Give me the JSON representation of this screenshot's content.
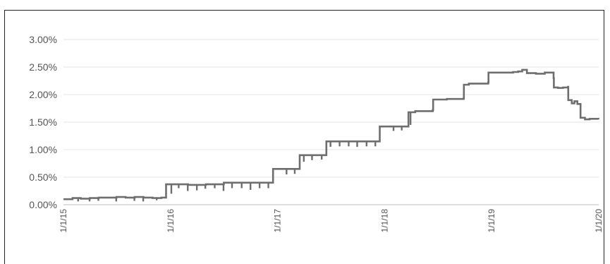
{
  "chart_data": {
    "type": "line",
    "title": "",
    "xlabel": "",
    "ylabel": "",
    "y_tick_labels": [
      "0.00%",
      "0.50%",
      "1.00%",
      "1.50%",
      "2.00%",
      "2.50%",
      "3.00%"
    ],
    "x_tick_labels": [
      "1/1/15",
      "1/1/16",
      "1/1/17",
      "1/1/18",
      "1/1/19",
      "1/1/20"
    ],
    "ylim": [
      0,
      3.0
    ],
    "xlim": [
      "2015-01-01",
      "2020-01-01"
    ],
    "grid": true,
    "line_color": "#6e6e6e",
    "series": [
      {
        "values": [
          {
            "x": "2015-01-01",
            "y": 0.1
          },
          {
            "x": "2015-02-01",
            "y": 0.12
          },
          {
            "x": "2015-03-01",
            "y": 0.11
          },
          {
            "x": "2015-04-01",
            "y": 0.12
          },
          {
            "x": "2015-05-01",
            "y": 0.13
          },
          {
            "x": "2015-06-01",
            "y": 0.13
          },
          {
            "x": "2015-07-01",
            "y": 0.14
          },
          {
            "x": "2015-08-01",
            "y": 0.13
          },
          {
            "x": "2015-09-01",
            "y": 0.14
          },
          {
            "x": "2015-10-01",
            "y": 0.13
          },
          {
            "x": "2015-11-01",
            "y": 0.12
          },
          {
            "x": "2015-12-01",
            "y": 0.13
          },
          {
            "x": "2015-12-17",
            "y": 0.37
          },
          {
            "x": "2016-01-15",
            "y": 0.37
          },
          {
            "x": "2016-03-01",
            "y": 0.36
          },
          {
            "x": "2016-05-01",
            "y": 0.37
          },
          {
            "x": "2016-07-01",
            "y": 0.4
          },
          {
            "x": "2016-09-01",
            "y": 0.4
          },
          {
            "x": "2016-11-01",
            "y": 0.4
          },
          {
            "x": "2016-12-15",
            "y": 0.4
          },
          {
            "x": "2016-12-16",
            "y": 0.65
          },
          {
            "x": "2017-02-01",
            "y": 0.65
          },
          {
            "x": "2017-03-16",
            "y": 0.65
          },
          {
            "x": "2017-03-17",
            "y": 0.9
          },
          {
            "x": "2017-05-01",
            "y": 0.9
          },
          {
            "x": "2017-06-15",
            "y": 0.9
          },
          {
            "x": "2017-06-16",
            "y": 1.15
          },
          {
            "x": "2017-09-01",
            "y": 1.15
          },
          {
            "x": "2017-12-14",
            "y": 1.15
          },
          {
            "x": "2017-12-15",
            "y": 1.42
          },
          {
            "x": "2018-02-01",
            "y": 1.42
          },
          {
            "x": "2018-03-22",
            "y": 1.42
          },
          {
            "x": "2018-03-23",
            "y": 1.68
          },
          {
            "x": "2018-04-15",
            "y": 1.7
          },
          {
            "x": "2018-06-14",
            "y": 1.72
          },
          {
            "x": "2018-06-15",
            "y": 1.91
          },
          {
            "x": "2018-08-01",
            "y": 1.92
          },
          {
            "x": "2018-09-27",
            "y": 1.93
          },
          {
            "x": "2018-09-28",
            "y": 2.18
          },
          {
            "x": "2018-10-15",
            "y": 2.2
          },
          {
            "x": "2018-12-20",
            "y": 2.22
          },
          {
            "x": "2018-12-21",
            "y": 2.4
          },
          {
            "x": "2019-02-01",
            "y": 2.4
          },
          {
            "x": "2019-03-15",
            "y": 2.41
          },
          {
            "x": "2019-04-01",
            "y": 2.42
          },
          {
            "x": "2019-04-15",
            "y": 2.45
          },
          {
            "x": "2019-05-01",
            "y": 2.39
          },
          {
            "x": "2019-06-01",
            "y": 2.38
          },
          {
            "x": "2019-07-01",
            "y": 2.4
          },
          {
            "x": "2019-07-29",
            "y": 2.4
          },
          {
            "x": "2019-07-31",
            "y": 2.3
          },
          {
            "x": "2019-08-01",
            "y": 2.13
          },
          {
            "x": "2019-08-15",
            "y": 2.12
          },
          {
            "x": "2019-09-01",
            "y": 2.13
          },
          {
            "x": "2019-09-18",
            "y": 2.14
          },
          {
            "x": "2019-09-19",
            "y": 1.9
          },
          {
            "x": "2019-10-01",
            "y": 1.84
          },
          {
            "x": "2019-10-10",
            "y": 1.88
          },
          {
            "x": "2019-10-20",
            "y": 1.83
          },
          {
            "x": "2019-10-30",
            "y": 1.83
          },
          {
            "x": "2019-10-31",
            "y": 1.58
          },
          {
            "x": "2019-11-15",
            "y": 1.55
          },
          {
            "x": "2019-12-01",
            "y": 1.56
          },
          {
            "x": "2019-12-31",
            "y": 1.55
          }
        ],
        "dips": [
          {
            "x": "2015-02-20",
            "y": 0.06
          },
          {
            "x": "2015-03-31",
            "y": 0.06
          },
          {
            "x": "2015-04-30",
            "y": 0.07
          },
          {
            "x": "2015-06-30",
            "y": 0.06
          },
          {
            "x": "2015-08-31",
            "y": 0.07
          },
          {
            "x": "2015-09-30",
            "y": 0.06
          },
          {
            "x": "2015-11-15",
            "y": 0.08
          },
          {
            "x": "2016-01-04",
            "y": 0.2
          },
          {
            "x": "2016-01-29",
            "y": 0.3
          },
          {
            "x": "2016-02-29",
            "y": 0.25
          },
          {
            "x": "2016-03-31",
            "y": 0.26
          },
          {
            "x": "2016-04-29",
            "y": 0.29
          },
          {
            "x": "2016-05-31",
            "y": 0.3
          },
          {
            "x": "2016-06-30",
            "y": 0.25
          },
          {
            "x": "2016-07-29",
            "y": 0.3
          },
          {
            "x": "2016-08-31",
            "y": 0.3
          },
          {
            "x": "2016-09-30",
            "y": 0.27
          },
          {
            "x": "2016-10-31",
            "y": 0.3
          },
          {
            "x": "2016-11-30",
            "y": 0.3
          },
          {
            "x": "2017-01-31",
            "y": 0.55
          },
          {
            "x": "2017-02-28",
            "y": 0.56
          },
          {
            "x": "2017-03-31",
            "y": 0.78
          },
          {
            "x": "2017-04-28",
            "y": 0.81
          },
          {
            "x": "2017-05-31",
            "y": 0.82
          },
          {
            "x": "2017-06-30",
            "y": 1.05
          },
          {
            "x": "2017-07-31",
            "y": 1.06
          },
          {
            "x": "2017-08-31",
            "y": 1.06
          },
          {
            "x": "2017-09-29",
            "y": 1.05
          },
          {
            "x": "2017-10-31",
            "y": 1.06
          },
          {
            "x": "2017-11-30",
            "y": 1.06
          },
          {
            "x": "2018-01-31",
            "y": 1.34
          },
          {
            "x": "2018-02-28",
            "y": 1.35
          },
          {
            "x": "2018-03-30",
            "y": 1.45
          }
        ]
      }
    ]
  }
}
